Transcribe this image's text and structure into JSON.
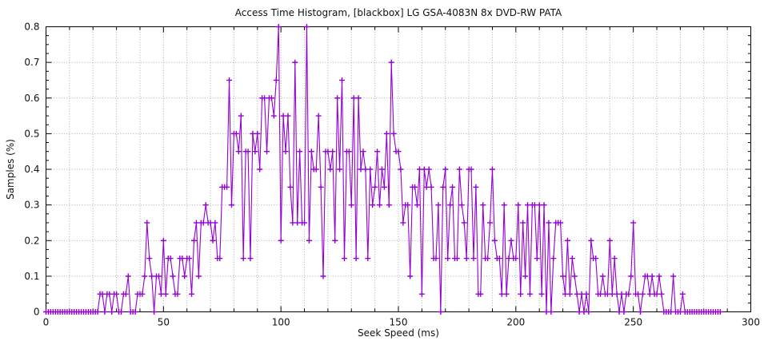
{
  "chart_data": {
    "type": "line",
    "title": "Access Time Histogram, [blackbox] LG GSA-4083N 8x DVD-RW PATA",
    "xlabel": "Seek Speed (ms)",
    "ylabel": "Samples (%)",
    "xlim": [
      0,
      300
    ],
    "ylim": [
      0,
      0.8
    ],
    "x_major_tick_step": 50,
    "x_minor_tick_step": 10,
    "y_major_tick_step": 0.1,
    "y_minor_tick_step": 0.025,
    "grid": true,
    "grid_x_step": 10,
    "grid_y_step": 0.1,
    "legend_position": "none",
    "marker": "plus",
    "line_color": "#9400d3",
    "grid_color": "#ababab",
    "axis_color": "#000000",
    "text_color": "#111111",
    "x_start": 0,
    "x_step": 1,
    "values": [
      0,
      0,
      0,
      0,
      0,
      0,
      0,
      0,
      0,
      0,
      0,
      0,
      0,
      0,
      0,
      0,
      0,
      0,
      0,
      0,
      0,
      0,
      0,
      0.05,
      0.05,
      0,
      0.05,
      0.05,
      0,
      0.05,
      0.05,
      0,
      0,
      0.05,
      0.05,
      0.1,
      0,
      0,
      0,
      0.05,
      0.05,
      0.05,
      0.1,
      0.25,
      0.15,
      0.1,
      0,
      0.1,
      0.1,
      0.05,
      0.2,
      0.05,
      0.15,
      0.15,
      0.1,
      0.05,
      0.05,
      0.15,
      0.15,
      0.1,
      0.15,
      0.15,
      0.05,
      0.2,
      0.25,
      0.1,
      0.25,
      0.25,
      0.3,
      0.25,
      0.25,
      0.2,
      0.25,
      0.15,
      0.15,
      0.35,
      0.35,
      0.35,
      0.65,
      0.3,
      0.5,
      0.5,
      0.45,
      0.55,
      0.15,
      0.45,
      0.45,
      0.15,
      0.5,
      0.45,
      0.5,
      0.4,
      0.6,
      0.6,
      0.45,
      0.6,
      0.6,
      0.55,
      0.65,
      0.8,
      0.2,
      0.55,
      0.45,
      0.55,
      0.35,
      0.25,
      0.7,
      0.25,
      0.45,
      0.25,
      0.25,
      0.8,
      0.2,
      0.45,
      0.4,
      0.4,
      0.55,
      0.35,
      0.1,
      0.45,
      0.45,
      0.4,
      0.45,
      0.2,
      0.6,
      0.4,
      0.65,
      0.15,
      0.45,
      0.45,
      0.3,
      0.6,
      0.15,
      0.6,
      0.4,
      0.45,
      0.4,
      0.15,
      0.4,
      0.3,
      0.35,
      0.45,
      0.3,
      0.4,
      0.35,
      0.5,
      0.3,
      0.7,
      0.5,
      0.45,
      0.45,
      0.4,
      0.25,
      0.3,
      0.3,
      0.1,
      0.35,
      0.35,
      0.3,
      0.4,
      0.05,
      0.4,
      0.35,
      0.4,
      0.35,
      0.15,
      0.15,
      0.3,
      0,
      0.35,
      0.4,
      0.15,
      0.3,
      0.35,
      0.15,
      0.15,
      0.4,
      0.3,
      0.25,
      0.15,
      0.4,
      0.4,
      0.15,
      0.35,
      0.05,
      0.05,
      0.3,
      0.15,
      0.15,
      0.25,
      0.4,
      0.2,
      0.15,
      0.15,
      0.05,
      0.3,
      0.05,
      0.15,
      0.2,
      0.15,
      0.15,
      0.3,
      0.05,
      0.25,
      0.1,
      0.3,
      0.05,
      0.3,
      0.3,
      0.15,
      0.3,
      0.05,
      0.3,
      0,
      0.25,
      0,
      0.15,
      0.25,
      0.25,
      0.25,
      0.1,
      0.05,
      0.2,
      0.05,
      0.15,
      0.1,
      0.05,
      0,
      0.05,
      0,
      0.05,
      0,
      0.2,
      0.15,
      0.15,
      0.05,
      0.05,
      0.1,
      0.05,
      0.05,
      0.2,
      0.05,
      0.15,
      0.05,
      0,
      0.05,
      0,
      0.05,
      0.05,
      0.1,
      0.25,
      0.05,
      0.05,
      0,
      0.05,
      0.1,
      0.1,
      0.05,
      0.1,
      0.05,
      0.05,
      0.1,
      0.05,
      0,
      0,
      0,
      0,
      0.1,
      0,
      0,
      0,
      0.05,
      0,
      0,
      0,
      0,
      0,
      0,
      0,
      0,
      0,
      0,
      0,
      0,
      0,
      0,
      0,
      0
    ]
  }
}
